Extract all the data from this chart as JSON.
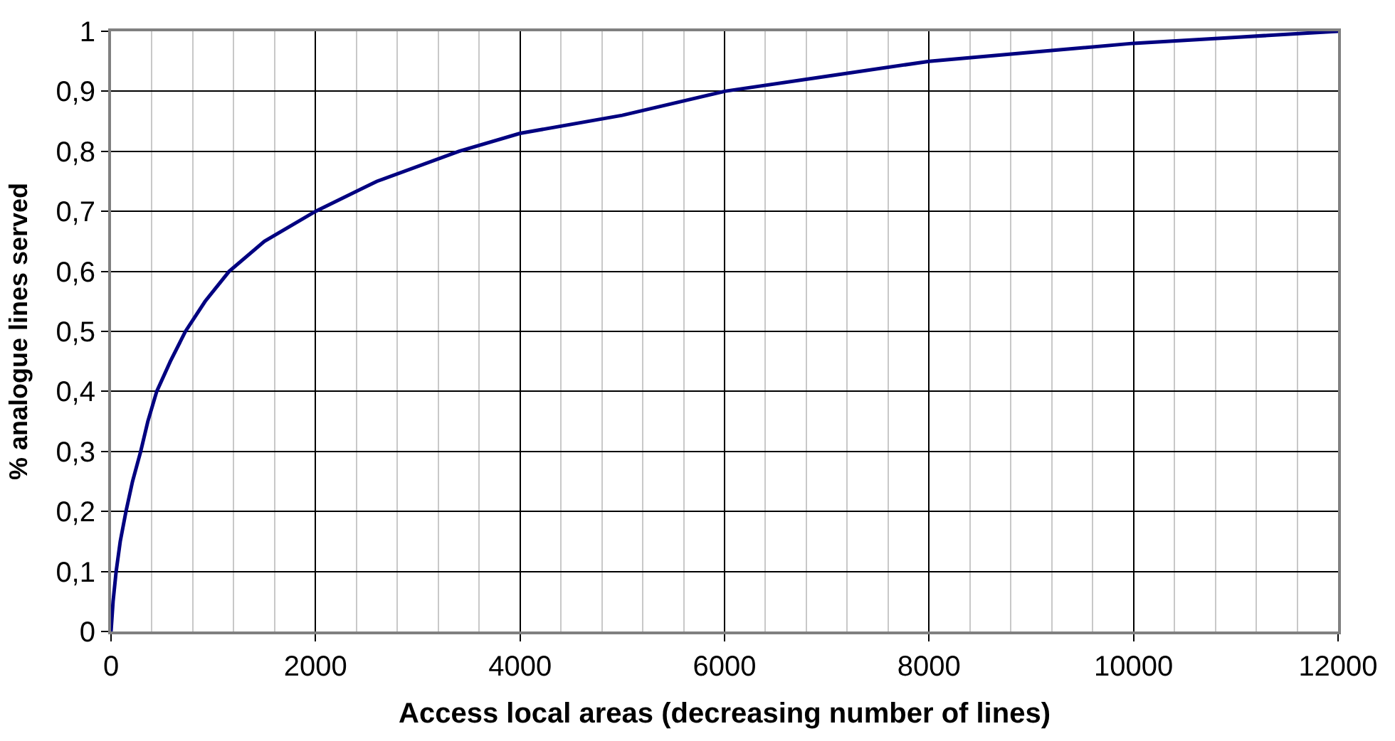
{
  "chart_data": {
    "type": "line",
    "xlabel": "Access local areas (decreasing number of lines)",
    "ylabel": "% analogue lines served",
    "x": [
      0,
      20,
      50,
      90,
      146,
      210,
      290,
      360,
      447,
      580,
      728,
      920,
      1155,
      1500,
      2000,
      2600,
      3400,
      4000,
      5000,
      6000,
      7000,
      8000,
      9000,
      10000,
      11000,
      12000
    ],
    "series": [
      {
        "color": "#000080",
        "values": [
          0,
          0.05,
          0.1,
          0.15,
          0.2,
          0.25,
          0.3,
          0.35,
          0.4,
          0.45,
          0.5,
          0.55,
          0.6,
          0.65,
          0.7,
          0.75,
          0.8,
          0.83,
          0.86,
          0.9,
          0.925,
          0.95,
          0.965,
          0.98,
          0.99,
          1
        ]
      }
    ],
    "xlim": [
      0,
      12000
    ],
    "ylim": [
      0,
      1
    ],
    "xticks": [
      0,
      2000,
      4000,
      6000,
      8000,
      10000,
      12000
    ],
    "yticks": [
      0,
      {
        "value": 0.1,
        "label": "0,1"
      },
      {
        "value": 0.2,
        "label": "0,2"
      },
      {
        "value": 0.3,
        "label": "0,3"
      },
      {
        "value": 0.4,
        "label": "0,4"
      },
      {
        "value": 0.5,
        "label": "0,5"
      },
      {
        "value": 0.6,
        "label": "0,6"
      },
      {
        "value": 0.7,
        "label": "0,7"
      },
      {
        "value": 0.8,
        "label": "0,8"
      },
      {
        "value": 0.9,
        "label": "0,9"
      },
      1
    ],
    "grid": true,
    "legend": false,
    "marker": "none",
    "line_style": "solid"
  }
}
